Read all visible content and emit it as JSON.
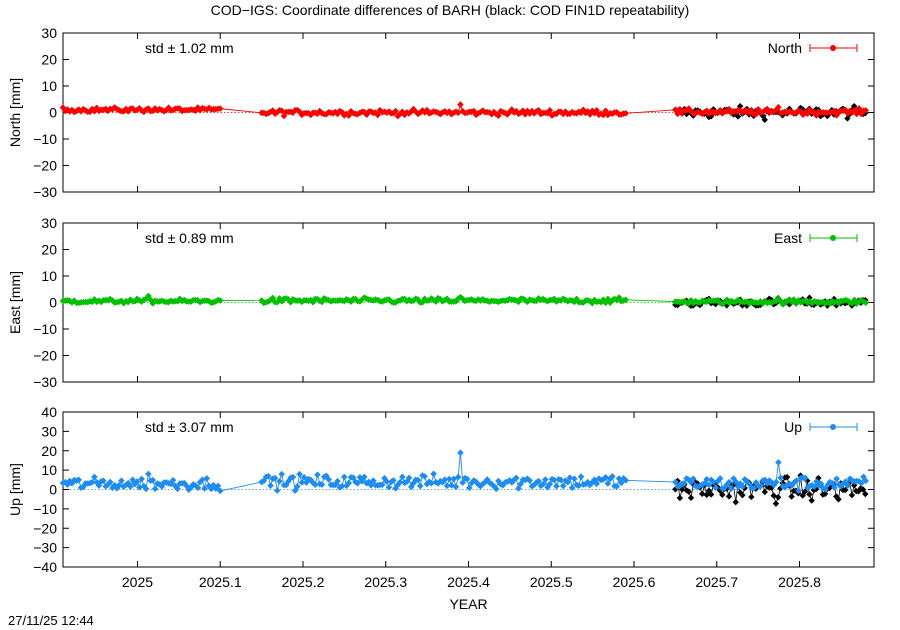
{
  "figure": {
    "title": "COD−IGS: Coordinate differences of BARH (black: COD FIN1D repeatability)",
    "timestamp": "27/11/25 12:44",
    "xlabel": "YEAR"
  },
  "chart_data": [
    {
      "type": "scatter",
      "name": "North",
      "ylabel": "North [mm]",
      "std_label": "std ± 1.02 mm",
      "legend": "North",
      "legend_position": "top-right",
      "color": "#ff0000",
      "ylim": [
        -30,
        30
      ],
      "yticks": [
        30,
        20,
        10,
        0,
        -10,
        -20,
        -30
      ],
      "ytick_labels": [
        "30",
        "20",
        "10",
        "0",
        "−10",
        "−20",
        "−30"
      ],
      "segments": [
        {
          "x0": 2024.91,
          "x1": 2025.1,
          "base": 1.0,
          "amp": 0.8,
          "spike": 1.5
        },
        {
          "x0": 2025.15,
          "x1": 2025.59,
          "base": 0.0,
          "amp": 1.0,
          "spike": 3.0
        },
        {
          "x0": 2025.65,
          "x1": 2025.88,
          "base": 0.2,
          "amp": 1.0,
          "spike": 2.0
        }
      ],
      "repeatability": {
        "x0": 2025.65,
        "x1": 2025.88,
        "amp": 2.0
      }
    },
    {
      "type": "scatter",
      "name": "East",
      "ylabel": "East [mm]",
      "std_label": "std ± 0.89 mm",
      "legend": "East",
      "legend_position": "top-right",
      "color": "#00c000",
      "ylim": [
        -30,
        30
      ],
      "yticks": [
        30,
        20,
        10,
        0,
        -10,
        -20,
        -30
      ],
      "ytick_labels": [
        "30",
        "20",
        "10",
        "0",
        "−10",
        "−20",
        "−30"
      ],
      "segments": [
        {
          "x0": 2024.91,
          "x1": 2025.1,
          "base": 0.5,
          "amp": 0.8,
          "spike": 2.5
        },
        {
          "x0": 2025.15,
          "x1": 2025.59,
          "base": 0.7,
          "amp": 0.9,
          "spike": 2.0
        },
        {
          "x0": 2025.65,
          "x1": 2025.88,
          "base": 0.3,
          "amp": 0.8,
          "spike": 1.5
        }
      ],
      "repeatability": {
        "x0": 2025.65,
        "x1": 2025.88,
        "amp": 1.5
      }
    },
    {
      "type": "scatter",
      "name": "Up",
      "ylabel": "Up [mm]",
      "std_label": "std ± 3.07 mm",
      "legend": "Up",
      "legend_position": "top-right",
      "color": "#1e8cf0",
      "ylim": [
        -40,
        40
      ],
      "yticks": [
        40,
        30,
        20,
        10,
        0,
        -10,
        -20,
        -30,
        -40
      ],
      "ytick_labels": [
        "40",
        "30",
        "20",
        "10",
        "0",
        "−10",
        "−20",
        "−30",
        "−40"
      ],
      "segments": [
        {
          "x0": 2024.91,
          "x1": 2025.1,
          "base": 3.0,
          "amp": 3.0,
          "spike": 8.0
        },
        {
          "x0": 2025.15,
          "x1": 2025.59,
          "base": 4.0,
          "amp": 3.5,
          "spike": 19.0
        },
        {
          "x0": 2025.65,
          "x1": 2025.88,
          "base": 3.0,
          "amp": 3.5,
          "spike": 14.0
        }
      ],
      "repeatability": {
        "x0": 2025.65,
        "x1": 2025.88,
        "amp": 6.0
      }
    }
  ],
  "xaxis": {
    "xlim": [
      2024.91,
      2025.89
    ],
    "ticks": [
      2025.0,
      2025.1,
      2025.2,
      2025.3,
      2025.4,
      2025.5,
      2025.6,
      2025.7,
      2025.8
    ],
    "tick_labels": [
      "2025",
      "2025.1",
      "2025.2",
      "2025.3",
      "2025.4",
      "2025.5",
      "2025.6",
      "2025.7",
      "2025.8"
    ]
  }
}
